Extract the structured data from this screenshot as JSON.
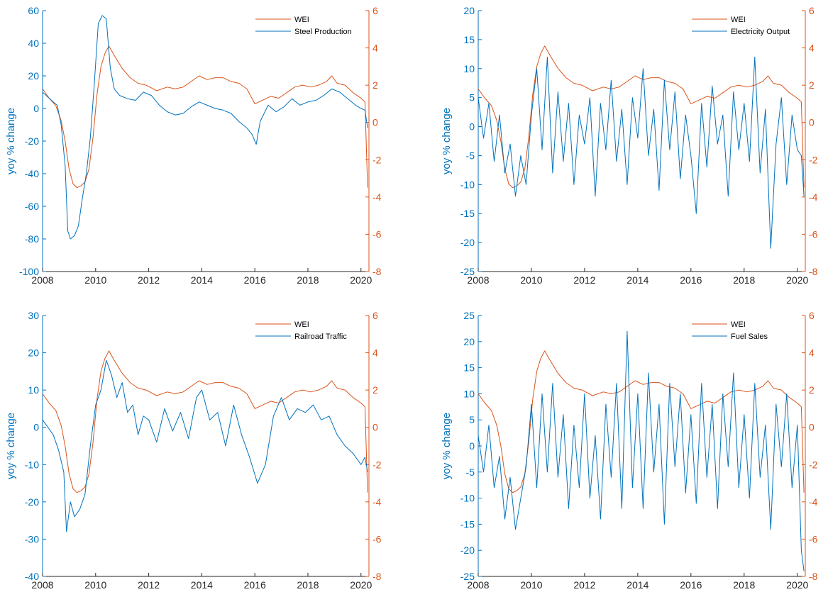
{
  "colors": {
    "wei": "#d95319",
    "series": "#0072bd",
    "axis": "#262626"
  },
  "chart_data": [
    {
      "type": "line",
      "ylabel_left": "yoy % change",
      "xlim": [
        2008,
        2020.3
      ],
      "x_ticks": [
        "2008",
        "2010",
        "2012",
        "2014",
        "2016",
        "2018",
        "2020"
      ],
      "ylim_left": [
        -100,
        60
      ],
      "y_ticks_left": [
        "-100",
        "-80",
        "-60",
        "-40",
        "-20",
        "0",
        "20",
        "40",
        "60"
      ],
      "ylim_right": [
        -8,
        6
      ],
      "y_ticks_right": [
        "-8",
        "-6",
        "-4",
        "-2",
        "0",
        "2",
        "4",
        "6"
      ],
      "legend_position": "top-right",
      "series": [
        {
          "name": "WEI",
          "axis": "right",
          "x": [
            2008,
            2008.25,
            2008.5,
            2008.7,
            2008.85,
            2009,
            2009.15,
            2009.3,
            2009.45,
            2009.6,
            2009.75,
            2009.9,
            2010.05,
            2010.2,
            2010.35,
            2010.5,
            2010.7,
            2011,
            2011.3,
            2011.6,
            2011.9,
            2012.3,
            2012.7,
            2013,
            2013.3,
            2013.6,
            2013.9,
            2014.2,
            2014.5,
            2014.8,
            2015.1,
            2015.4,
            2015.7,
            2016,
            2016.3,
            2016.6,
            2016.9,
            2017.2,
            2017.5,
            2017.8,
            2018.1,
            2018.4,
            2018.7,
            2018.9,
            2019.1,
            2019.4,
            2019.7,
            2020,
            2020.15,
            2020.25
          ],
          "values": [
            1.8,
            1.3,
            0.9,
            0.1,
            -1.0,
            -2.5,
            -3.3,
            -3.5,
            -3.4,
            -3.2,
            -2.5,
            -0.8,
            1.5,
            3.0,
            3.7,
            4.1,
            3.6,
            2.9,
            2.4,
            2.1,
            2.0,
            1.7,
            1.9,
            1.8,
            1.9,
            2.2,
            2.5,
            2.3,
            2.4,
            2.4,
            2.2,
            2.1,
            1.8,
            1.0,
            1.2,
            1.4,
            1.3,
            1.6,
            1.9,
            2.0,
            1.9,
            2.0,
            2.2,
            2.5,
            2.1,
            2.0,
            1.6,
            1.3,
            1.1,
            -3.5
          ]
        },
        {
          "name": "Steel Production",
          "axis": "left",
          "x": [
            2008,
            2008.2,
            2008.4,
            2008.55,
            2008.7,
            2008.85,
            2008.95,
            2009.05,
            2009.2,
            2009.35,
            2009.5,
            2009.65,
            2009.8,
            2009.95,
            2010.1,
            2010.25,
            2010.4,
            2010.55,
            2010.7,
            2010.9,
            2011.2,
            2011.5,
            2011.8,
            2012.1,
            2012.4,
            2012.7,
            2013,
            2013.3,
            2013.6,
            2013.9,
            2014.2,
            2014.5,
            2014.8,
            2015.1,
            2015.4,
            2015.7,
            2015.9,
            2016.05,
            2016.2,
            2016.5,
            2016.8,
            2017.1,
            2017.4,
            2017.7,
            2018,
            2018.3,
            2018.6,
            2018.9,
            2019.2,
            2019.5,
            2019.8,
            2020,
            2020.15,
            2020.25
          ],
          "values": [
            10,
            7,
            4,
            2,
            -10,
            -35,
            -75,
            -80,
            -78,
            -72,
            -55,
            -40,
            -18,
            15,
            52,
            57,
            55,
            25,
            12,
            8,
            6,
            5,
            10,
            8,
            2,
            -2,
            -4,
            -3,
            1,
            4,
            2,
            0,
            -1,
            -3,
            -8,
            -12,
            -16,
            -22,
            -8,
            2,
            -2,
            1,
            6,
            2,
            4,
            5,
            8,
            12,
            10,
            6,
            2,
            0,
            -1,
            -12
          ]
        }
      ]
    },
    {
      "type": "line",
      "ylabel_left": "yoy % change",
      "xlim": [
        2008,
        2020.3
      ],
      "x_ticks": [
        "2008",
        "2010",
        "2012",
        "2014",
        "2016",
        "2018",
        "2020"
      ],
      "ylim_left": [
        -25,
        20
      ],
      "y_ticks_left": [
        "-25",
        "-20",
        "-15",
        "-10",
        "-5",
        "0",
        "5",
        "10",
        "15",
        "20"
      ],
      "ylim_right": [
        -8,
        6
      ],
      "y_ticks_right": [
        "-8",
        "-6",
        "-4",
        "-2",
        "0",
        "2",
        "4",
        "6"
      ],
      "legend_position": "top-right",
      "series": [
        {
          "name": "WEI",
          "axis": "right",
          "x": [
            2008,
            2008.25,
            2008.5,
            2008.7,
            2008.85,
            2009,
            2009.15,
            2009.3,
            2009.45,
            2009.6,
            2009.75,
            2009.9,
            2010.05,
            2010.2,
            2010.35,
            2010.5,
            2010.7,
            2011,
            2011.3,
            2011.6,
            2011.9,
            2012.3,
            2012.7,
            2013,
            2013.3,
            2013.6,
            2013.9,
            2014.2,
            2014.5,
            2014.8,
            2015.1,
            2015.4,
            2015.7,
            2016,
            2016.3,
            2016.6,
            2016.9,
            2017.2,
            2017.5,
            2017.8,
            2018.1,
            2018.4,
            2018.7,
            2018.9,
            2019.1,
            2019.4,
            2019.7,
            2020,
            2020.15,
            2020.25
          ],
          "values": [
            1.8,
            1.3,
            0.9,
            0.1,
            -1.0,
            -2.5,
            -3.3,
            -3.5,
            -3.4,
            -3.2,
            -2.5,
            -0.8,
            1.5,
            3.0,
            3.7,
            4.1,
            3.6,
            2.9,
            2.4,
            2.1,
            2.0,
            1.7,
            1.9,
            1.8,
            1.9,
            2.2,
            2.5,
            2.3,
            2.4,
            2.4,
            2.2,
            2.1,
            1.8,
            1.0,
            1.2,
            1.4,
            1.3,
            1.6,
            1.9,
            2.0,
            1.9,
            2.0,
            2.2,
            2.5,
            2.1,
            2.0,
            1.6,
            1.3,
            1.1,
            -3.5
          ]
        },
        {
          "name": "Electricity Output",
          "axis": "left",
          "x": [
            2008,
            2008.2,
            2008.4,
            2008.6,
            2008.8,
            2009,
            2009.2,
            2009.4,
            2009.6,
            2009.8,
            2010,
            2010.2,
            2010.4,
            2010.6,
            2010.8,
            2011,
            2011.2,
            2011.4,
            2011.6,
            2011.8,
            2012,
            2012.2,
            2012.4,
            2012.6,
            2012.8,
            2013,
            2013.2,
            2013.4,
            2013.6,
            2013.8,
            2014,
            2014.2,
            2014.4,
            2014.6,
            2014.8,
            2015,
            2015.2,
            2015.4,
            2015.6,
            2015.8,
            2016,
            2016.2,
            2016.4,
            2016.6,
            2016.8,
            2017,
            2017.2,
            2017.4,
            2017.6,
            2017.8,
            2018,
            2018.2,
            2018.4,
            2018.6,
            2018.8,
            2019,
            2019.2,
            2019.4,
            2019.6,
            2019.8,
            2020,
            2020.15,
            2020.25
          ],
          "values": [
            5,
            -2,
            4,
            -6,
            2,
            -8,
            -3,
            -12,
            -5,
            -10,
            2,
            10,
            -4,
            12,
            -8,
            6,
            -6,
            4,
            -10,
            2,
            -3,
            5,
            -12,
            4,
            -4,
            8,
            -6,
            3,
            -10,
            5,
            -2,
            10,
            -5,
            3,
            -11,
            8,
            -4,
            6,
            -9,
            2,
            -5,
            -15,
            4,
            -7,
            7,
            -3,
            2,
            -12,
            6,
            -4,
            4,
            -6,
            12,
            -8,
            3,
            -21,
            -3,
            5,
            -10,
            2,
            -4,
            -5,
            -12
          ]
        }
      ]
    },
    {
      "type": "line",
      "ylabel_left": "yoy % change",
      "xlim": [
        2008,
        2020.3
      ],
      "x_ticks": [
        "2008",
        "2010",
        "2012",
        "2014",
        "2016",
        "2018",
        "2020"
      ],
      "ylim_left": [
        -40,
        30
      ],
      "y_ticks_left": [
        "-40",
        "-30",
        "-20",
        "-10",
        "0",
        "10",
        "20",
        "30"
      ],
      "ylim_right": [
        -8,
        6
      ],
      "y_ticks_right": [
        "-8",
        "-6",
        "-4",
        "-2",
        "0",
        "2",
        "4",
        "6"
      ],
      "legend_position": "top-right",
      "series": [
        {
          "name": "WEI",
          "axis": "right",
          "x": [
            2008,
            2008.25,
            2008.5,
            2008.7,
            2008.85,
            2009,
            2009.15,
            2009.3,
            2009.45,
            2009.6,
            2009.75,
            2009.9,
            2010.05,
            2010.2,
            2010.35,
            2010.5,
            2010.7,
            2011,
            2011.3,
            2011.6,
            2011.9,
            2012.3,
            2012.7,
            2013,
            2013.3,
            2013.6,
            2013.9,
            2014.2,
            2014.5,
            2014.8,
            2015.1,
            2015.4,
            2015.7,
            2016,
            2016.3,
            2016.6,
            2016.9,
            2017.2,
            2017.5,
            2017.8,
            2018.1,
            2018.4,
            2018.7,
            2018.9,
            2019.1,
            2019.4,
            2019.7,
            2020,
            2020.15,
            2020.25
          ],
          "values": [
            1.8,
            1.3,
            0.9,
            0.1,
            -1.0,
            -2.5,
            -3.3,
            -3.5,
            -3.4,
            -3.2,
            -2.5,
            -0.8,
            1.5,
            3.0,
            3.7,
            4.1,
            3.6,
            2.9,
            2.4,
            2.1,
            2.0,
            1.7,
            1.9,
            1.8,
            1.9,
            2.2,
            2.5,
            2.3,
            2.4,
            2.4,
            2.2,
            2.1,
            1.8,
            1.0,
            1.2,
            1.4,
            1.3,
            1.6,
            1.9,
            2.0,
            1.9,
            2.0,
            2.2,
            2.5,
            2.1,
            2.0,
            1.6,
            1.3,
            1.1,
            -3.5
          ]
        },
        {
          "name": "Railroad Traffic",
          "axis": "left",
          "x": [
            2008,
            2008.2,
            2008.4,
            2008.6,
            2008.8,
            2008.9,
            2009.05,
            2009.2,
            2009.4,
            2009.6,
            2009.8,
            2010,
            2010.2,
            2010.4,
            2010.6,
            2010.8,
            2011,
            2011.2,
            2011.4,
            2011.6,
            2011.8,
            2012,
            2012.3,
            2012.6,
            2012.9,
            2013.2,
            2013.5,
            2013.8,
            2014,
            2014.3,
            2014.6,
            2014.9,
            2015.2,
            2015.5,
            2015.8,
            2016.1,
            2016.4,
            2016.7,
            2017,
            2017.3,
            2017.6,
            2017.9,
            2018.2,
            2018.5,
            2018.8,
            2019.1,
            2019.4,
            2019.7,
            2020,
            2020.15,
            2020.25
          ],
          "values": [
            2,
            0,
            -2,
            -6,
            -12,
            -28,
            -20,
            -24,
            -22,
            -18,
            -5,
            6,
            10,
            18,
            14,
            8,
            12,
            4,
            6,
            -2,
            3,
            2,
            -4,
            5,
            -1,
            4,
            -3,
            8,
            10,
            2,
            4,
            -5,
            6,
            -2,
            -8,
            -15,
            -10,
            3,
            8,
            2,
            5,
            4,
            6,
            2,
            3,
            -2,
            -5,
            -7,
            -10,
            -8,
            -12
          ]
        }
      ]
    },
    {
      "type": "line",
      "ylabel_left": "yoy % change",
      "xlim": [
        2008,
        2020.3
      ],
      "x_ticks": [
        "2008",
        "2010",
        "2012",
        "2014",
        "2016",
        "2018",
        "2020"
      ],
      "ylim_left": [
        -25,
        25
      ],
      "y_ticks_left": [
        "-25",
        "-20",
        "-15",
        "-10",
        "-5",
        "0",
        "5",
        "10",
        "15",
        "20",
        "25"
      ],
      "ylim_right": [
        -8,
        6
      ],
      "y_ticks_right": [
        "-8",
        "-6",
        "-4",
        "-2",
        "0",
        "2",
        "4",
        "6"
      ],
      "legend_position": "top-right",
      "series": [
        {
          "name": "WEI",
          "axis": "right",
          "x": [
            2008,
            2008.25,
            2008.5,
            2008.7,
            2008.85,
            2009,
            2009.15,
            2009.3,
            2009.45,
            2009.6,
            2009.75,
            2009.9,
            2010.05,
            2010.2,
            2010.35,
            2010.5,
            2010.7,
            2011,
            2011.3,
            2011.6,
            2011.9,
            2012.3,
            2012.7,
            2013,
            2013.3,
            2013.6,
            2013.9,
            2014.2,
            2014.5,
            2014.8,
            2015.1,
            2015.4,
            2015.7,
            2016,
            2016.3,
            2016.6,
            2016.9,
            2017.2,
            2017.5,
            2017.8,
            2018.1,
            2018.4,
            2018.7,
            2018.9,
            2019.1,
            2019.4,
            2019.7,
            2020,
            2020.15,
            2020.25
          ],
          "values": [
            1.8,
            1.3,
            0.9,
            0.1,
            -1.0,
            -2.5,
            -3.3,
            -3.5,
            -3.4,
            -3.2,
            -2.5,
            -0.8,
            1.5,
            3.0,
            3.7,
            4.1,
            3.6,
            2.9,
            2.4,
            2.1,
            2.0,
            1.7,
            1.9,
            1.8,
            1.9,
            2.2,
            2.5,
            2.3,
            2.4,
            2.4,
            2.2,
            2.1,
            1.8,
            1.0,
            1.2,
            1.4,
            1.3,
            1.6,
            1.9,
            2.0,
            1.9,
            2.0,
            2.2,
            2.5,
            2.1,
            2.0,
            1.6,
            1.3,
            1.1,
            -3.5
          ]
        },
        {
          "name": "Fuel Sales",
          "axis": "left",
          "x": [
            2008,
            2008.2,
            2008.4,
            2008.6,
            2008.8,
            2009,
            2009.2,
            2009.4,
            2009.6,
            2009.8,
            2010,
            2010.2,
            2010.4,
            2010.6,
            2010.8,
            2011,
            2011.2,
            2011.4,
            2011.6,
            2011.8,
            2012,
            2012.2,
            2012.4,
            2012.6,
            2012.8,
            2013,
            2013.2,
            2013.4,
            2013.6,
            2013.8,
            2014,
            2014.2,
            2014.4,
            2014.6,
            2014.8,
            2015,
            2015.2,
            2015.4,
            2015.6,
            2015.8,
            2016,
            2016.2,
            2016.4,
            2016.6,
            2016.8,
            2017,
            2017.2,
            2017.4,
            2017.6,
            2017.8,
            2018,
            2018.2,
            2018.4,
            2018.6,
            2018.8,
            2019,
            2019.2,
            2019.4,
            2019.6,
            2019.8,
            2020,
            2020.15,
            2020.25
          ],
          "values": [
            2,
            -5,
            4,
            -8,
            -2,
            -14,
            -6,
            -16,
            -10,
            -4,
            8,
            -8,
            10,
            -5,
            12,
            -6,
            6,
            -12,
            4,
            -8,
            10,
            -10,
            2,
            -14,
            8,
            -6,
            12,
            -12,
            22,
            -8,
            10,
            -12,
            14,
            -5,
            8,
            -15,
            12,
            -4,
            10,
            -9,
            6,
            -11,
            12,
            -6,
            8,
            -12,
            10,
            -4,
            14,
            -8,
            6,
            -10,
            12,
            -6,
            4,
            -16,
            8,
            -4,
            10,
            -8,
            4,
            -20,
            -24
          ]
        }
      ]
    }
  ]
}
